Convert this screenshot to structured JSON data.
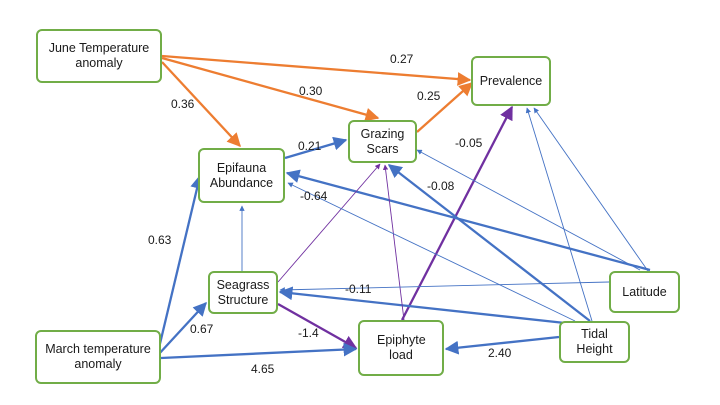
{
  "nodes": {
    "june_temp": {
      "label": "June Temperature anomaly"
    },
    "prevalence": {
      "label": "Prevalence"
    },
    "grazing": {
      "label": "Grazing Scars"
    },
    "epifauna": {
      "label": "Epifauna Abundance"
    },
    "seagrass": {
      "label": "Seagrass Structure"
    },
    "latitude": {
      "label": "Latitude"
    },
    "march_temp": {
      "label": "March temperature anomaly"
    },
    "epiphyte": {
      "label": "Epiphyte load"
    },
    "tidal": {
      "label": "Tidal Height"
    }
  },
  "colors": {
    "positive": "#ed7d31",
    "negative_or_other": "#4472c4",
    "purple": "#7030a0",
    "node_border": "#71ad47"
  },
  "edges": [
    {
      "id": "june_prev",
      "from": "june_temp",
      "to": "prevalence",
      "label": "0.27",
      "color": "orange",
      "style": "thick"
    },
    {
      "id": "june_graz",
      "from": "june_temp",
      "to": "grazing",
      "label": "0.30",
      "color": "orange",
      "style": "thick"
    },
    {
      "id": "june_epif",
      "from": "june_temp",
      "to": "epifauna",
      "label": "0.36",
      "color": "orange",
      "style": "thick"
    },
    {
      "id": "graz_prev",
      "from": "grazing",
      "to": "prevalence",
      "label": "0.25",
      "color": "orange",
      "style": "thick"
    },
    {
      "id": "epif_graz",
      "from": "epifauna",
      "to": "grazing",
      "label": "0.21",
      "color": "blue",
      "style": "thick"
    },
    {
      "id": "epiph_prev",
      "from": "epiphyte",
      "to": "prevalence",
      "label": "-0.05",
      "color": "purple",
      "style": "thick"
    },
    {
      "id": "tidal_graz",
      "from": "tidal",
      "to": "grazing",
      "label": "-0.08",
      "color": "blue",
      "style": "thick"
    },
    {
      "id": "lat_epif",
      "from": "latitude",
      "to": "epifauna",
      "label": "-0.64",
      "color": "blue",
      "style": "thick"
    },
    {
      "id": "march_epif",
      "from": "march_temp",
      "to": "epifauna",
      "label": "0.63",
      "color": "blue",
      "style": "thick"
    },
    {
      "id": "tidal_seag",
      "from": "tidal",
      "to": "seagrass",
      "label": "-0.11",
      "color": "blue",
      "style": "thick"
    },
    {
      "id": "march_seag",
      "from": "march_temp",
      "to": "seagrass",
      "label": "0.67",
      "color": "blue",
      "style": "thick"
    },
    {
      "id": "seag_epiph",
      "from": "seagrass",
      "to": "epiphyte",
      "label": "-1.4",
      "color": "purple",
      "style": "thick"
    },
    {
      "id": "march_epiph",
      "from": "march_temp",
      "to": "epiphyte",
      "label": "4.65",
      "color": "blue",
      "style": "thick"
    },
    {
      "id": "tidal_epiph",
      "from": "tidal",
      "to": "epiphyte",
      "label": "2.40",
      "color": "blue",
      "style": "thick"
    },
    {
      "id": "seag_epif",
      "from": "seagrass",
      "to": "epifauna",
      "label": "",
      "color": "blue",
      "style": "thin"
    },
    {
      "id": "seag_graz",
      "from": "seagrass",
      "to": "grazing",
      "label": "",
      "color": "purple",
      "style": "thin"
    },
    {
      "id": "epiph_graz",
      "from": "epiphyte",
      "to": "grazing",
      "label": "",
      "color": "purple",
      "style": "thin"
    },
    {
      "id": "lat_prev",
      "from": "latitude",
      "to": "prevalence",
      "label": "",
      "color": "blue",
      "style": "thin"
    },
    {
      "id": "lat_graz",
      "from": "latitude",
      "to": "grazing",
      "label": "",
      "color": "blue",
      "style": "thin"
    },
    {
      "id": "lat_seag",
      "from": "latitude",
      "to": "seagrass",
      "label": "",
      "color": "blue",
      "style": "thin"
    },
    {
      "id": "tidal_prev",
      "from": "tidal",
      "to": "prevalence",
      "label": "",
      "color": "blue",
      "style": "thin"
    },
    {
      "id": "tidal_epif",
      "from": "tidal",
      "to": "epifauna",
      "label": "",
      "color": "blue",
      "style": "thin"
    }
  ]
}
